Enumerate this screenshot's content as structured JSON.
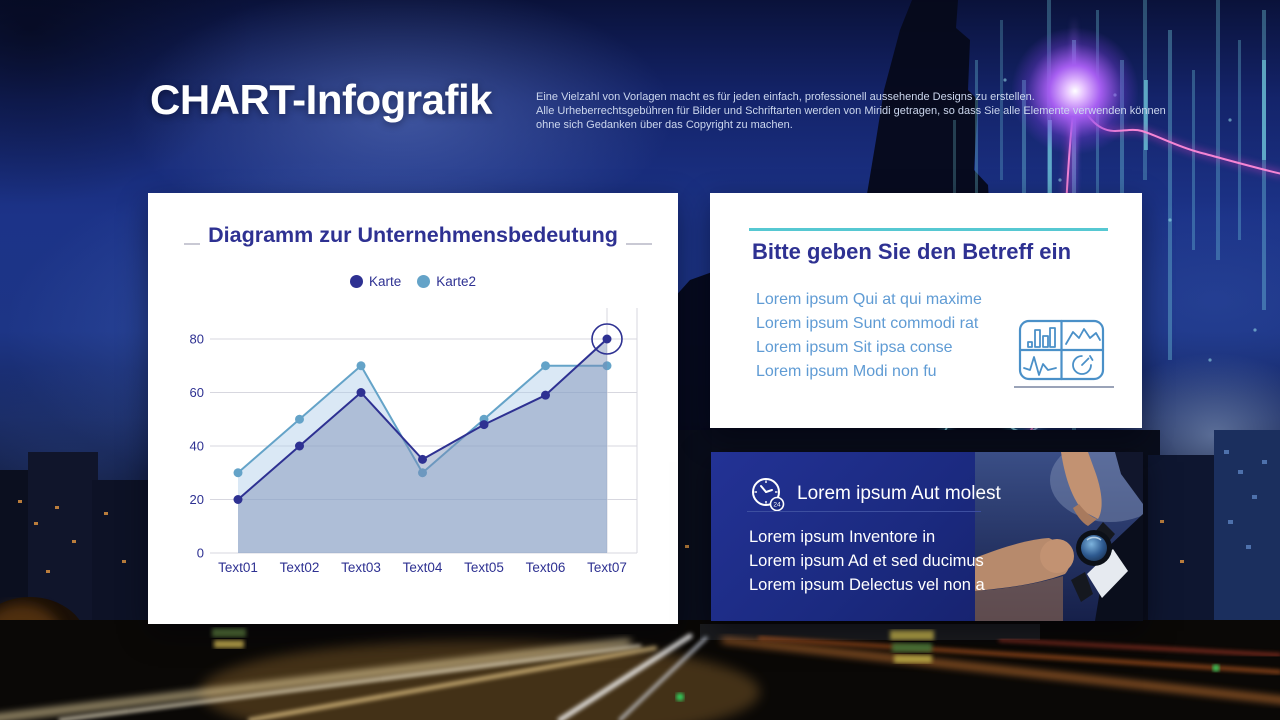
{
  "header": {
    "title": "CHART-Infografik",
    "description_lines": [
      "Eine Vielzahl von Vorlagen macht es für jeden einfach, professionell aussehende Designs zu erstellen.",
      "Alle Urheberrechtsgebühren für Bilder und Schriftarten werden von Miridi getragen, so dass Sie alle Elemente verwenden können",
      "ohne sich Gedanken über das Copyright zu machen."
    ]
  },
  "chart_card": {
    "title": "Diagramm zur Unternehmensbedeutung"
  },
  "chart_data": {
    "type": "area",
    "title": "Diagramm zur Unternehmensbedeutung",
    "categories": [
      "Text01",
      "Text02",
      "Text03",
      "Text04",
      "Text05",
      "Text06",
      "Text07"
    ],
    "series": [
      {
        "name": "Karte",
        "color": "#2e3192",
        "fill": "rgba(120,140,180,0.45)",
        "values": [
          20,
          40,
          60,
          35,
          48,
          59,
          80
        ]
      },
      {
        "name": "Karte2",
        "color": "#64a3c8",
        "fill": "rgba(173,205,233,0.45)",
        "values": [
          30,
          50,
          70,
          30,
          50,
          70,
          70
        ]
      }
    ],
    "yticks": [
      0,
      20,
      40,
      60,
      80
    ],
    "ylim": [
      0,
      80
    ],
    "grid": "horizontal",
    "legend_position": "top",
    "axis_color": "#2e3192",
    "grid_color": "#d7d7df",
    "annotation": {
      "type": "circle",
      "series": "Karte",
      "category": "Text07",
      "value": 80
    }
  },
  "subject_card": {
    "title": "Bitte geben Sie den Betreff ein",
    "items": [
      "Lorem ipsum Qui at qui maxime",
      "Lorem ipsum Sunt commodi rat",
      "Lorem ipsum Sit ipsa conse",
      "Lorem ipsum Modi non fu"
    ],
    "icon": "dashboard-charts-icon",
    "accent_color": "#56c8d2",
    "text_color": "#5f9bd4"
  },
  "time_card": {
    "title": "Lorem ipsum Aut molest",
    "badge": "24",
    "items": [
      "Lorem ipsum Inventore in",
      "Lorem ipsum Ad et sed ducimus",
      "Lorem ipsum Delectus vel non a"
    ],
    "icon": "clock-24-icon",
    "background_color": "#1b2a80"
  },
  "colors": {
    "heading_navy": "#2e3192",
    "series_dark": "#2e3192",
    "series_light": "#64a3c8"
  }
}
